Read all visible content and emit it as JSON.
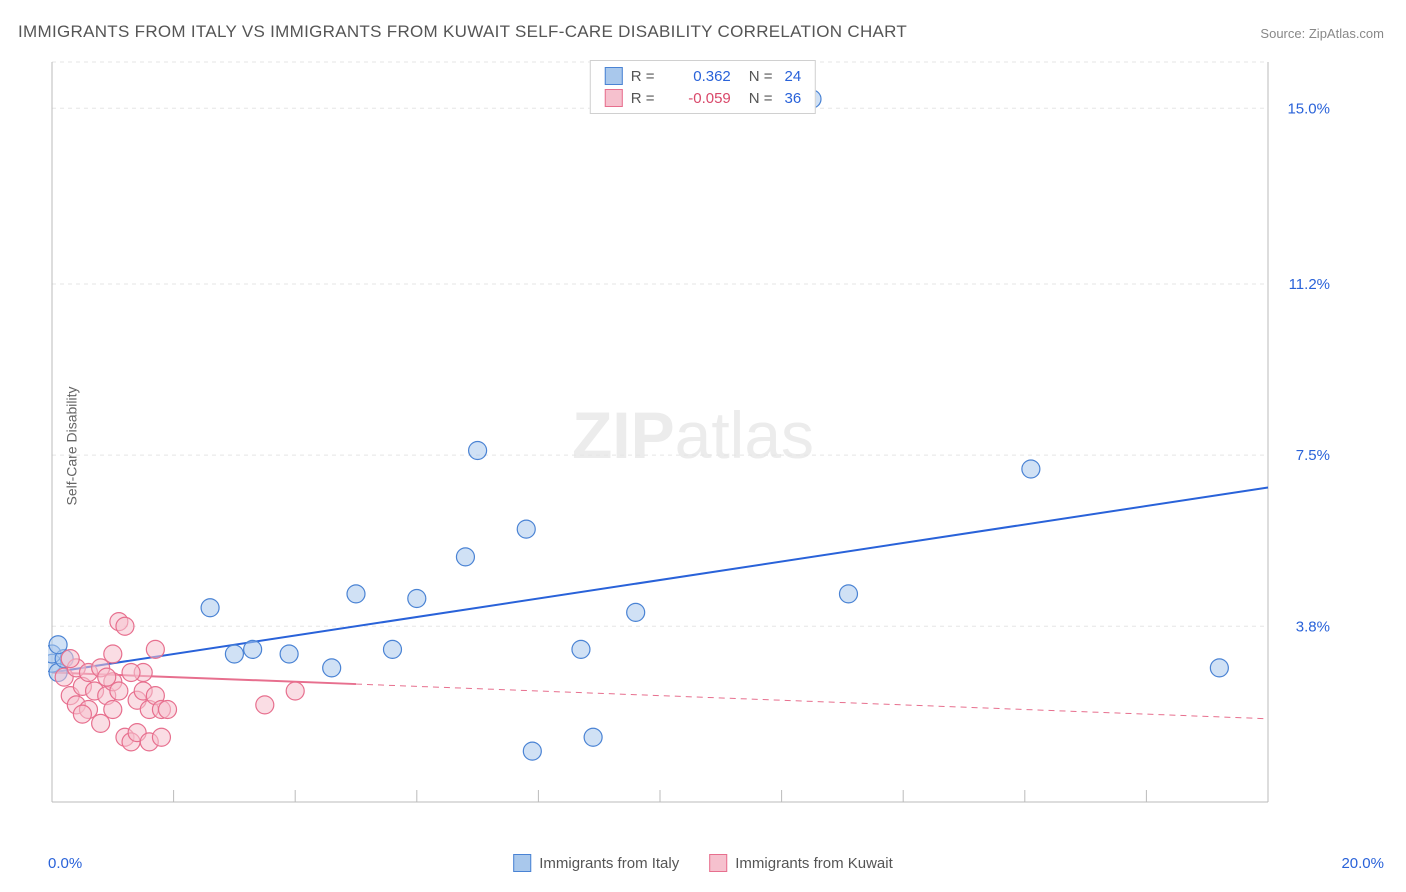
{
  "title": "IMMIGRANTS FROM ITALY VS IMMIGRANTS FROM KUWAIT SELF-CARE DISABILITY CORRELATION CHART",
  "source_label": "Source:",
  "source_name": "ZipAtlas.com",
  "ylabel": "Self-Care Disability",
  "watermark_bold": "ZIP",
  "watermark_rest": "atlas",
  "chart": {
    "type": "scatter",
    "xlim": [
      0,
      20
    ],
    "ylim": [
      0,
      16
    ],
    "x_tick_labels": [
      "0.0%",
      "20.0%"
    ],
    "y_tick_labels": [
      "3.8%",
      "7.5%",
      "11.2%",
      "15.0%"
    ],
    "y_tick_values": [
      3.8,
      7.5,
      11.2,
      15.0
    ],
    "grid_color": "#e5e5e5",
    "axis_color": "#bbbbbb",
    "axis_label_color": "#2962d9",
    "background_color": "#ffffff",
    "marker_radius": 9,
    "marker_stroke_width": 1.2,
    "trend_line_width": 2,
    "series": [
      {
        "name": "Immigrants from Italy",
        "fill": "#a9c8ec",
        "fill_opacity": 0.55,
        "stroke": "#4a83d4",
        "R": "0.362",
        "N": "24",
        "trend": {
          "x1": 0,
          "y1": 2.8,
          "x2": 20,
          "y2": 6.8,
          "color": "#2962d9",
          "solid_until_x": 20
        },
        "points": [
          [
            0.0,
            3.0
          ],
          [
            0.0,
            3.2
          ],
          [
            0.1,
            2.8
          ],
          [
            0.2,
            3.1
          ],
          [
            2.6,
            4.2
          ],
          [
            3.0,
            3.2
          ],
          [
            3.3,
            3.3
          ],
          [
            3.9,
            3.2
          ],
          [
            4.6,
            2.9
          ],
          [
            5.0,
            4.5
          ],
          [
            5.6,
            3.3
          ],
          [
            6.0,
            4.4
          ],
          [
            6.8,
            5.3
          ],
          [
            7.0,
            7.6
          ],
          [
            7.8,
            5.9
          ],
          [
            7.9,
            1.1
          ],
          [
            8.7,
            3.3
          ],
          [
            8.9,
            1.4
          ],
          [
            9.6,
            4.1
          ],
          [
            12.5,
            15.2
          ],
          [
            13.1,
            4.5
          ],
          [
            16.1,
            7.2
          ],
          [
            19.2,
            2.9
          ],
          [
            0.1,
            3.4
          ]
        ]
      },
      {
        "name": "Immigrants from Kuwait",
        "fill": "#f6c1ce",
        "fill_opacity": 0.55,
        "stroke": "#e76f8e",
        "R": "-0.059",
        "N": "36",
        "trend": {
          "x1": 0,
          "y1": 2.8,
          "x2": 20,
          "y2": 1.8,
          "color": "#e76f8e",
          "solid_until_x": 5
        },
        "points": [
          [
            0.2,
            2.7
          ],
          [
            0.3,
            2.3
          ],
          [
            0.4,
            2.9
          ],
          [
            0.4,
            2.1
          ],
          [
            0.5,
            2.5
          ],
          [
            0.6,
            2.8
          ],
          [
            0.6,
            2.0
          ],
          [
            0.7,
            2.4
          ],
          [
            0.8,
            2.9
          ],
          [
            0.8,
            1.7
          ],
          [
            0.9,
            2.3
          ],
          [
            1.0,
            2.6
          ],
          [
            1.0,
            2.0
          ],
          [
            1.1,
            3.9
          ],
          [
            1.2,
            3.8
          ],
          [
            1.2,
            1.4
          ],
          [
            1.3,
            1.3
          ],
          [
            1.4,
            2.2
          ],
          [
            1.4,
            1.5
          ],
          [
            1.5,
            2.4
          ],
          [
            1.5,
            2.8
          ],
          [
            1.6,
            1.3
          ],
          [
            1.6,
            2.0
          ],
          [
            1.7,
            2.3
          ],
          [
            1.7,
            3.3
          ],
          [
            1.8,
            2.0
          ],
          [
            1.8,
            1.4
          ],
          [
            1.9,
            2.0
          ],
          [
            3.5,
            2.1
          ],
          [
            4.0,
            2.4
          ],
          [
            0.3,
            3.1
          ],
          [
            0.5,
            1.9
          ],
          [
            0.9,
            2.7
          ],
          [
            1.1,
            2.4
          ],
          [
            1.3,
            2.8
          ],
          [
            1.0,
            3.2
          ]
        ]
      }
    ]
  },
  "legend_top": {
    "r_label": "R =",
    "n_label": "N ="
  },
  "v_grid_positions": [
    0.1,
    0.2,
    0.3,
    0.4,
    0.5,
    0.6,
    0.7,
    0.8,
    0.9
  ]
}
